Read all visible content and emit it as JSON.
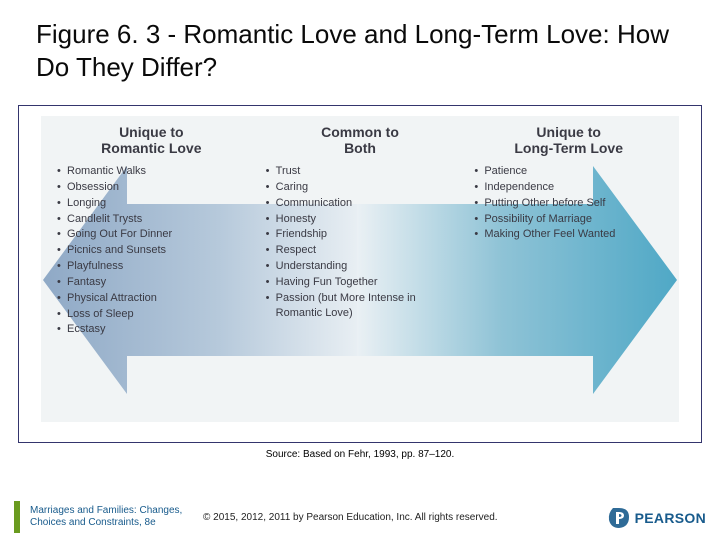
{
  "title": "Figure 6. 3 - Romantic Love and Long-Term Love: How Do They Differ?",
  "columns": {
    "left": {
      "heading": "Unique to<br>Romantic Love",
      "items": [
        "Romantic Walks",
        "Obsession",
        "Longing",
        "Candlelit Trysts",
        "Going Out For Dinner",
        "Picnics and Sunsets",
        "Playfulness",
        "Fantasy",
        "Physical Attraction",
        "Loss of Sleep",
        "Ecstasy"
      ]
    },
    "middle": {
      "heading": "Common to<br>Both",
      "items": [
        "Trust",
        "Caring",
        "Communication",
        "Honesty",
        "Friendship",
        "Respect",
        "Understanding",
        "Having Fun Together",
        "Passion (but More Intense in Romantic Love)"
      ]
    },
    "right": {
      "heading": "Unique to<br>Long-Term Love",
      "items": [
        "Patience",
        "Independence",
        "Putting Other before Self",
        "Possibility of Marriage",
        "Making Other Feel Wanted"
      ]
    }
  },
  "arrows": {
    "left_gradient": {
      "from": "#8fa9c6",
      "mid": "#b6c9db",
      "to": "#eaf0f4"
    },
    "right_gradient": {
      "from": "#eaf0f4",
      "mid": "#8fc3d6",
      "to": "#4fa8c6"
    }
  },
  "source": "Source: Based on Fehr, 1993, pp. 87–120.",
  "footer": {
    "book_line1": "Marriages and Families: Changes,",
    "book_line2": "Choices and Constraints, 8e",
    "copyright": "© 2015, 2012, 2011 by Pearson Education, Inc. All rights reserved.",
    "brand": "PEARSON"
  },
  "colors": {
    "border": "#34356d",
    "panel_bg": "#f1f4f5",
    "accent_green": "#6a9b1f",
    "pearson_blue": "#185b8c",
    "text": "#3a3a44"
  }
}
